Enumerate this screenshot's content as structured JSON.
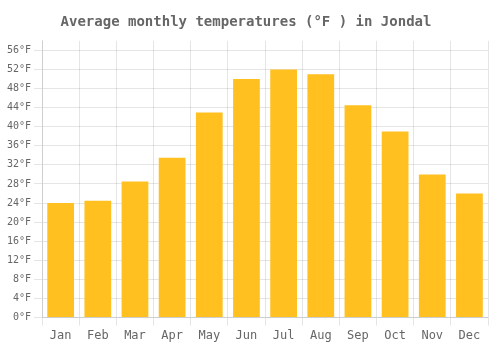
{
  "chart_data": {
    "type": "bar",
    "title": "Average monthly temperatures (°F ) in Jondal",
    "categories": [
      "Jan",
      "Feb",
      "Mar",
      "Apr",
      "May",
      "Jun",
      "Jul",
      "Aug",
      "Sep",
      "Oct",
      "Nov",
      "Dec"
    ],
    "values": [
      24,
      24.5,
      28.5,
      33.5,
      43,
      50,
      52,
      51,
      44.5,
      39,
      30,
      26
    ],
    "color": "#FFC020",
    "ylim": [
      0,
      58
    ],
    "yticks": [
      {
        "value": 0,
        "label": "0°F"
      },
      {
        "value": 4,
        "label": "4°F"
      },
      {
        "value": 8,
        "label": "8°F"
      },
      {
        "value": 12,
        "label": "12°F"
      },
      {
        "value": 16,
        "label": "16°F"
      },
      {
        "value": 20,
        "label": "20°F"
      },
      {
        "value": 24,
        "label": "24°F"
      },
      {
        "value": 28,
        "label": "28°F"
      },
      {
        "value": 32,
        "label": "32°F"
      },
      {
        "value": 36,
        "label": "36°F"
      },
      {
        "value": 40,
        "label": "40°F"
      },
      {
        "value": 44,
        "label": "44°F"
      },
      {
        "value": 48,
        "label": "48°F"
      },
      {
        "value": 52,
        "label": "52°F"
      },
      {
        "value": 56,
        "label": "56°F"
      }
    ],
    "grid": true
  }
}
